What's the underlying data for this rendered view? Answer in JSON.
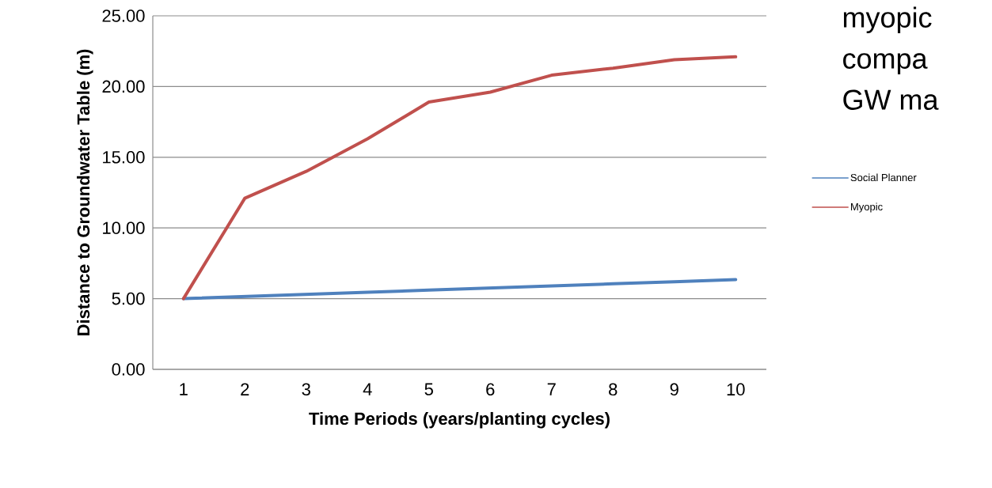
{
  "chart_data": {
    "type": "line",
    "xlabel": "Time Periods (years/planting  cycles)",
    "ylabel": "Distance to Groundwater Table (m)",
    "categories": [
      "1",
      "2",
      "3",
      "4",
      "5",
      "6",
      "7",
      "8",
      "9",
      "10"
    ],
    "series": [
      {
        "name": "Social Planner",
        "color": "#4f81bd",
        "values": [
          5.0,
          5.15,
          5.3,
          5.45,
          5.6,
          5.75,
          5.9,
          6.05,
          6.2,
          6.35
        ]
      },
      {
        "name": "Myopic",
        "color": "#c0504d",
        "values": [
          5.0,
          12.1,
          14.0,
          16.3,
          18.9,
          19.6,
          20.8,
          21.3,
          21.9,
          22.1
        ]
      }
    ],
    "ylim": [
      0,
      25
    ],
    "yticks": [
      {
        "value": 0,
        "label": "0.00"
      },
      {
        "value": 5,
        "label": "5.00"
      },
      {
        "value": 10,
        "label": "10.00"
      },
      {
        "value": 15,
        "label": "15.00"
      },
      {
        "value": 20,
        "label": "20.00"
      },
      {
        "value": 25,
        "label": "25.00"
      }
    ],
    "grid": "y",
    "legend": "right",
    "marker": "none",
    "line_style": "solid",
    "annotations": [
      "myopic",
      "compa",
      "GW ma"
    ]
  }
}
